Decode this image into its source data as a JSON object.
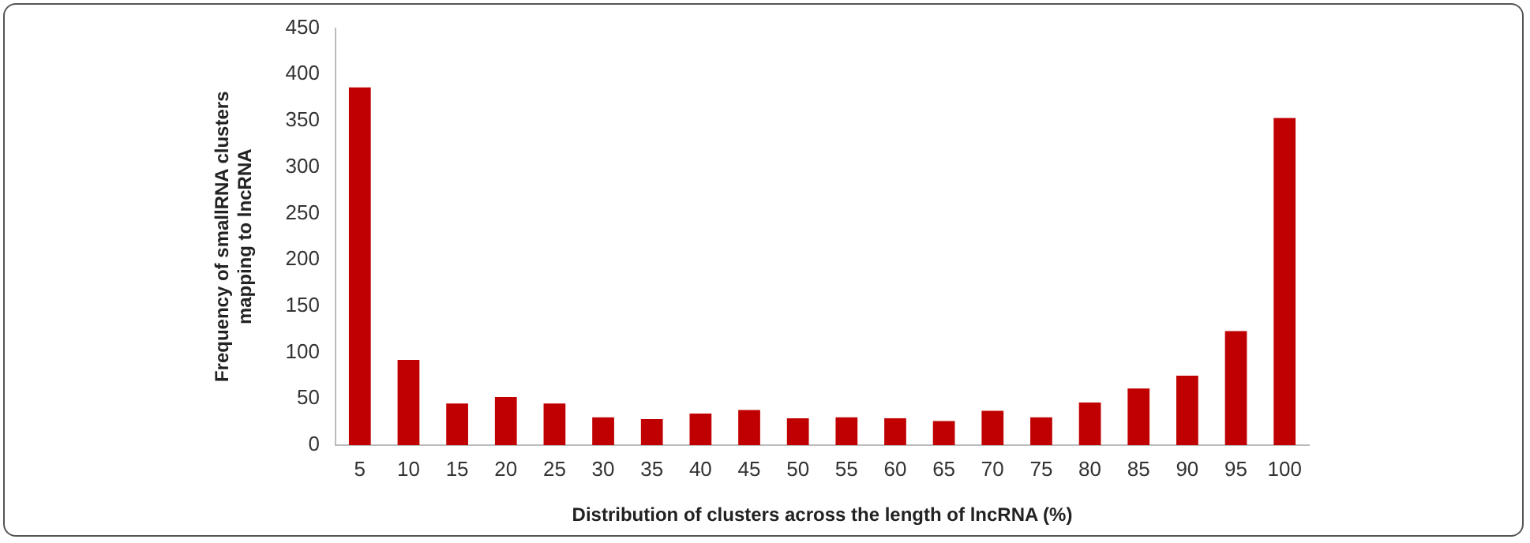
{
  "chart_data": {
    "type": "bar",
    "xlabel": "Distribution of clusters across the length of lncRNA (%)",
    "ylabel": "Frequency of smallRNA clusters mapping to lncRNA",
    "categories": [
      "5",
      "10",
      "15",
      "20",
      "25",
      "30",
      "35",
      "40",
      "45",
      "50",
      "55",
      "60",
      "65",
      "70",
      "75",
      "80",
      "85",
      "90",
      "95",
      "100"
    ],
    "values": [
      386,
      92,
      45,
      52,
      45,
      30,
      28,
      34,
      38,
      29,
      30,
      29,
      26,
      37,
      30,
      46,
      61,
      75,
      123,
      353
    ],
    "color": "#c00000",
    "ylim": [
      0,
      450
    ],
    "yticks": [
      0,
      50,
      100,
      150,
      200,
      250,
      300,
      350,
      400,
      450
    ],
    "grid": false
  }
}
